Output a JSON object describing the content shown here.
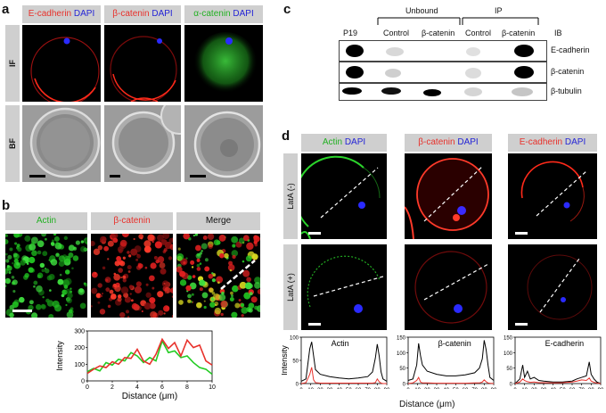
{
  "panels": {
    "a": "a",
    "b": "b",
    "c": "c",
    "d": "d"
  },
  "panel_a": {
    "headers": [
      {
        "stain": "E-cadherin",
        "dapi": "DAPI",
        "color": "#e8312b"
      },
      {
        "stain": "β-catenin",
        "dapi": "DAPI",
        "color": "#e8312b"
      },
      {
        "stain": "α-catenin",
        "dapi": "DAPI",
        "color": "#22b022"
      }
    ],
    "rows": [
      "IF",
      "BF"
    ]
  },
  "panel_b": {
    "headers": [
      "Actin",
      "β-catenin",
      "Merge"
    ],
    "header_colors": [
      "#22b022",
      "#e8312b",
      "#111111"
    ]
  },
  "panel_c": {
    "groups": [
      "Unbound",
      "IP"
    ],
    "lanes": [
      "P19",
      "Control",
      "β-catenin",
      "Control",
      "β-catenin"
    ],
    "ib_label": "IB",
    "blots": [
      "E-cadherin",
      "β-catenin",
      "β-tubulin"
    ]
  },
  "panel_d": {
    "headers": [
      {
        "stain": "Actin",
        "dapi": "DAPI",
        "color": "#22b022"
      },
      {
        "stain": "β-catenin",
        "dapi": "DAPI",
        "color": "#e8312b"
      },
      {
        "stain": "E-cadherin",
        "dapi": "DAPI",
        "color": "#e8312b"
      }
    ],
    "rows": [
      "LatA (-)",
      "LatA (+)"
    ],
    "plot_titles": [
      "Actin",
      "β-catenin",
      "E-cadherin"
    ],
    "ylabel": "Intensity",
    "xlabel": "Distance (μm)"
  },
  "chart_data": [
    {
      "type": "line",
      "panel": "b",
      "xlabel": "Distance (μm)",
      "ylabel": "Intensity",
      "xlim": [
        0,
        10
      ],
      "ylim": [
        0,
        300
      ],
      "xticks": [
        0,
        2,
        4,
        6,
        8,
        10
      ],
      "yticks": [
        0,
        100,
        200,
        300
      ],
      "x": [
        0,
        0.5,
        1,
        1.5,
        2,
        2.5,
        3,
        3.5,
        4,
        4.5,
        5,
        5.5,
        6,
        6.5,
        7,
        7.5,
        8,
        8.5,
        9,
        9.5,
        10
      ],
      "series": [
        {
          "color": "#22cc22",
          "values": [
            55,
            75,
            60,
            110,
            95,
            130,
            120,
            170,
            150,
            110,
            140,
            120,
            240,
            170,
            180,
            140,
            150,
            110,
            80,
            70,
            40
          ]
        },
        {
          "color": "#e8312b",
          "values": [
            45,
            70,
            90,
            80,
            115,
            100,
            140,
            135,
            190,
            120,
            100,
            160,
            250,
            195,
            230,
            150,
            245,
            200,
            215,
            120,
            95
          ]
        }
      ]
    },
    {
      "type": "line",
      "panel": "d",
      "title": "Actin",
      "ylabel": "Intensity",
      "xlim": [
        0,
        90
      ],
      "ylim": [
        0,
        100
      ],
      "xticks": [
        0,
        10,
        20,
        30,
        40,
        50,
        60,
        70,
        80,
        90
      ],
      "yticks": [
        0,
        50,
        100
      ],
      "x": [
        0,
        5,
        9,
        11,
        13,
        15,
        20,
        30,
        40,
        50,
        60,
        70,
        75,
        78,
        80,
        82,
        84,
        86,
        90
      ],
      "series": [
        {
          "color": "#000000",
          "values": [
            5,
            10,
            75,
            90,
            60,
            30,
            20,
            15,
            12,
            10,
            12,
            15,
            25,
            55,
            85,
            60,
            25,
            10,
            5
          ]
        },
        {
          "color": "#e8312b",
          "values": [
            0,
            2,
            20,
            35,
            8,
            2,
            1,
            1,
            1,
            1,
            1,
            1,
            1,
            2,
            10,
            4,
            1,
            0,
            0
          ]
        }
      ]
    },
    {
      "type": "line",
      "panel": "d",
      "title": "β-catenin",
      "xlim": [
        0,
        90
      ],
      "ylim": [
        0,
        150
      ],
      "xticks": [
        0,
        10,
        20,
        30,
        40,
        50,
        60,
        70,
        80,
        90
      ],
      "yticks": [
        0,
        50,
        100,
        150
      ],
      "x": [
        0,
        5,
        9,
        11,
        13,
        15,
        20,
        30,
        40,
        50,
        60,
        70,
        75,
        78,
        80,
        82,
        84,
        86,
        90
      ],
      "series": [
        {
          "color": "#000000",
          "values": [
            10,
            15,
            60,
            130,
            90,
            60,
            40,
            30,
            25,
            25,
            28,
            35,
            50,
            80,
            140,
            110,
            60,
            20,
            10
          ]
        },
        {
          "color": "#e8312b",
          "values": [
            0,
            2,
            10,
            20,
            5,
            2,
            2,
            1,
            1,
            1,
            1,
            2,
            2,
            5,
            12,
            6,
            2,
            1,
            0
          ]
        }
      ]
    },
    {
      "type": "line",
      "panel": "d",
      "title": "E-cadherin",
      "xlim": [
        0,
        90
      ],
      "ylim": [
        0,
        150
      ],
      "xticks": [
        0,
        10,
        20,
        30,
        40,
        50,
        60,
        70,
        80,
        90
      ],
      "yticks": [
        0,
        50,
        100,
        150
      ],
      "x": [
        0,
        5,
        8,
        10,
        13,
        16,
        20,
        25,
        30,
        40,
        50,
        60,
        65,
        70,
        75,
        78,
        80,
        83,
        86,
        90
      ],
      "series": [
        {
          "color": "#000000",
          "values": [
            0,
            15,
            60,
            20,
            40,
            15,
            20,
            10,
            8,
            5,
            5,
            8,
            15,
            20,
            25,
            70,
            30,
            15,
            5,
            0
          ]
        },
        {
          "color": "#e8312b",
          "values": [
            0,
            5,
            15,
            10,
            6,
            4,
            5,
            3,
            3,
            2,
            3,
            5,
            8,
            12,
            10,
            18,
            8,
            4,
            2,
            0
          ]
        }
      ]
    }
  ]
}
